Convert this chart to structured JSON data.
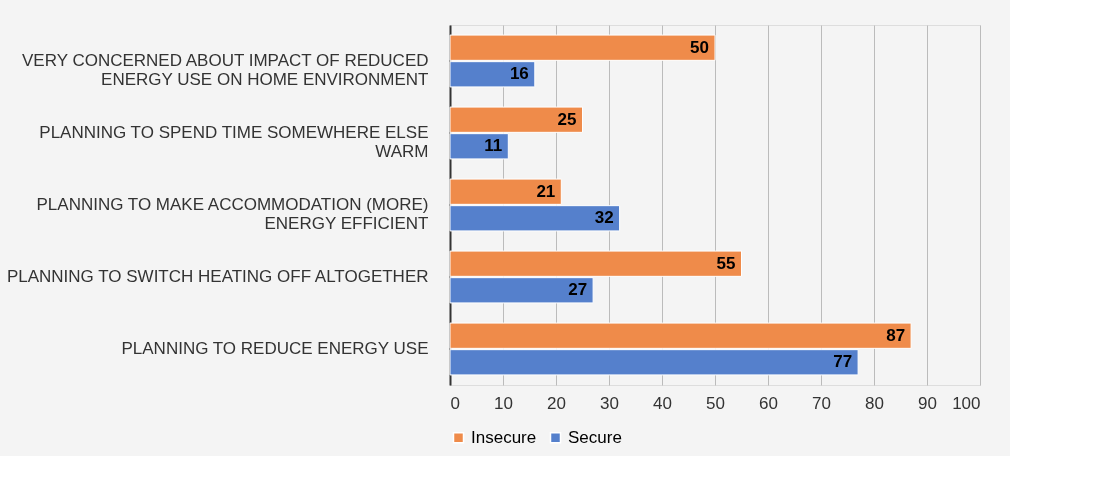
{
  "chart_data": {
    "type": "bar",
    "orientation": "horizontal",
    "categories": [
      "VERY CONCERNED ABOUT IMPACT OF REDUCED ENERGY USE ON HOME ENVIRONMENT",
      "PLANNING TO SPEND TIME SOMEWHERE ELSE WARM",
      "PLANNING TO MAKE ACCOMMODATION (MORE) ENERGY EFFICIENT",
      "PLANNING TO SWITCH HEATING OFF ALTOGETHER",
      "PLANNING TO REDUCE ENERGY USE"
    ],
    "series": [
      {
        "name": "Insecure",
        "color": "#ef8b4a",
        "values": [
          50,
          25,
          21,
          55,
          87
        ]
      },
      {
        "name": "Secure",
        "color": "#5580cc",
        "values": [
          16,
          11,
          32,
          27,
          77
        ]
      }
    ],
    "xlim": [
      0,
      100
    ],
    "xticks": [
      0,
      10,
      20,
      30,
      40,
      50,
      60,
      70,
      80,
      90,
      100
    ],
    "grid": "x",
    "legend": "bottom",
    "data_labels": true
  }
}
